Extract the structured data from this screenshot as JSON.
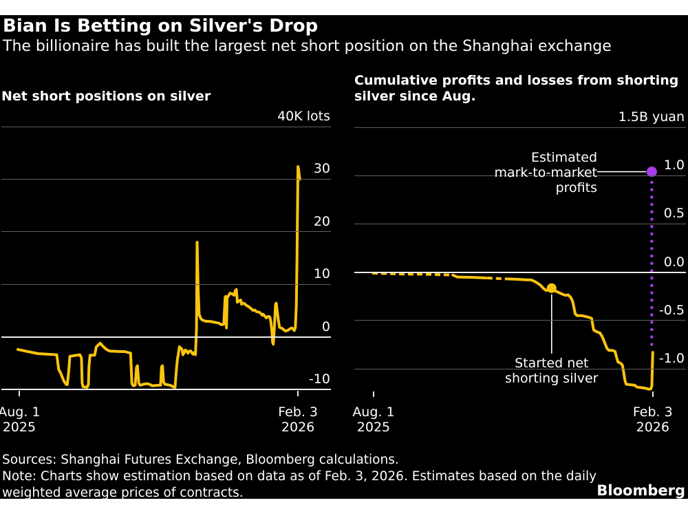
{
  "header": {
    "title": "Bian Is Betting on Silver's Drop",
    "subtitle": "The billionaire has built the largest net short position on the Shanghai exchange"
  },
  "footer": {
    "sources": "Sources: Shanghai Futures Exchange, Bloomberg calculations.",
    "note_line1": "Note: Charts show estimation based on data as of Feb. 3, 2026. Estimates based on the daily",
    "note_line2": "weighted average prices of contracts.",
    "brand": "Bloomberg"
  },
  "colors": {
    "background": "#000000",
    "page": "#ffffff",
    "line_yellow": "#fbc40f",
    "accent_purple": "#a93be8",
    "grid_gray": "#606060",
    "zero_line": "#ededed",
    "text": "#ffffff"
  },
  "chart_data": [
    {
      "type": "line",
      "id": "net-short-positions",
      "title_lines": [
        "Net short positions on silver"
      ],
      "unit_label": "40K lots",
      "ylabel": "K lots",
      "ylim": [
        -10,
        40
      ],
      "grid": true,
      "y_gridlines": [
        {
          "value": 40,
          "label": "40K lots",
          "emphasis": false
        },
        {
          "value": 30,
          "label": "30",
          "emphasis": false
        },
        {
          "value": 20,
          "label": "20",
          "emphasis": false
        },
        {
          "value": 10,
          "label": "10",
          "emphasis": false
        },
        {
          "value": 0,
          "label": "0",
          "emphasis": true
        },
        {
          "value": -10,
          "label": "-10",
          "emphasis": true
        }
      ],
      "x_ticks": [
        {
          "f": 0.054,
          "line1": "Aug. 1",
          "line2": "2025"
        },
        {
          "f": 0.9,
          "line1": "Feb. 3",
          "line2": "2026"
        }
      ],
      "series": [
        {
          "name": "net-short-lots",
          "dash": false,
          "points": [
            [
              0.05,
              -2.4
            ],
            [
              0.072,
              -2.7
            ],
            [
              0.111,
              -3.2
            ],
            [
              0.168,
              -3.4
            ],
            [
              0.174,
              -6.2
            ],
            [
              0.18,
              -6.9
            ],
            [
              0.189,
              -8.3
            ],
            [
              0.196,
              -9.0
            ],
            [
              0.2,
              -9.1
            ],
            [
              0.204,
              -6.8
            ],
            [
              0.208,
              -3.7
            ],
            [
              0.238,
              -3.4
            ],
            [
              0.243,
              -4.0
            ],
            [
              0.245,
              -8.8
            ],
            [
              0.248,
              -9.5
            ],
            [
              0.26,
              -9.6
            ],
            [
              0.264,
              -9.1
            ],
            [
              0.266,
              -5.5
            ],
            [
              0.269,
              -3.5
            ],
            [
              0.283,
              -3.5
            ],
            [
              0.288,
              -1.9
            ],
            [
              0.3,
              -1.2
            ],
            [
              0.305,
              -1.6
            ],
            [
              0.317,
              -2.3
            ],
            [
              0.328,
              -2.7
            ],
            [
              0.362,
              -2.8
            ],
            [
              0.374,
              -2.8
            ],
            [
              0.392,
              -3.1
            ],
            [
              0.396,
              -8.9
            ],
            [
              0.4,
              -9.3
            ],
            [
              0.406,
              -9.2
            ],
            [
              0.41,
              -5.8
            ],
            [
              0.413,
              -5.5
            ],
            [
              0.417,
              -8.8
            ],
            [
              0.421,
              -9.2
            ],
            [
              0.432,
              -9.0
            ],
            [
              0.443,
              -8.9
            ],
            [
              0.452,
              -9.1
            ],
            [
              0.457,
              -9.3
            ],
            [
              0.478,
              -9.2
            ],
            [
              0.483,
              -9.2
            ],
            [
              0.486,
              -5.7
            ],
            [
              0.489,
              -5.5
            ],
            [
              0.492,
              -8.6
            ],
            [
              0.496,
              -9.0
            ],
            [
              0.512,
              -9.2
            ],
            [
              0.521,
              -9.5
            ],
            [
              0.527,
              -9.6
            ],
            [
              0.53,
              -7.0
            ],
            [
              0.534,
              -4.3
            ],
            [
              0.537,
              -3.3
            ],
            [
              0.54,
              -1.9
            ],
            [
              0.544,
              -2.1
            ],
            [
              0.548,
              -2.4
            ],
            [
              0.551,
              -3.4
            ],
            [
              0.555,
              -3.0
            ],
            [
              0.558,
              -2.5
            ],
            [
              0.562,
              -2.7
            ],
            [
              0.566,
              -3.1
            ],
            [
              0.57,
              -2.7
            ],
            [
              0.575,
              -2.7
            ],
            [
              0.581,
              -3.3
            ],
            [
              0.585,
              -3.0
            ],
            [
              0.589,
              -3.4
            ],
            [
              0.592,
              1.5
            ],
            [
              0.594,
              18.0
            ],
            [
              0.597,
              9.0
            ],
            [
              0.6,
              4.3
            ],
            [
              0.605,
              3.5
            ],
            [
              0.61,
              3.2
            ],
            [
              0.618,
              3.0
            ],
            [
              0.637,
              2.9
            ],
            [
              0.66,
              2.6
            ],
            [
              0.668,
              2.3
            ],
            [
              0.675,
              2.4
            ],
            [
              0.679,
              7.5
            ],
            [
              0.681,
              7.7
            ],
            [
              0.683,
              1.7
            ],
            [
              0.685,
              7.4
            ],
            [
              0.69,
              7.9
            ],
            [
              0.694,
              8.3
            ],
            [
              0.7,
              8.2
            ],
            [
              0.706,
              7.9
            ],
            [
              0.71,
              8.8
            ],
            [
              0.713,
              9.0
            ],
            [
              0.716,
              6.6
            ],
            [
              0.721,
              6.8
            ],
            [
              0.726,
              7.0
            ],
            [
              0.729,
              6.2
            ],
            [
              0.734,
              6.4
            ],
            [
              0.738,
              6.3
            ],
            [
              0.743,
              6.0
            ],
            [
              0.749,
              5.8
            ],
            [
              0.757,
              5.4
            ],
            [
              0.764,
              5.0
            ],
            [
              0.769,
              5.1
            ],
            [
              0.774,
              4.8
            ],
            [
              0.781,
              4.7
            ],
            [
              0.785,
              4.6
            ],
            [
              0.789,
              4.3
            ],
            [
              0.792,
              4.1
            ],
            [
              0.794,
              4.3
            ],
            [
              0.8,
              3.9
            ],
            [
              0.804,
              3.6
            ],
            [
              0.808,
              3.8
            ],
            [
              0.811,
              3.9
            ],
            [
              0.815,
              3.7
            ],
            [
              0.818,
              2.8
            ],
            [
              0.821,
              0.9
            ],
            [
              0.823,
              -1.0
            ],
            [
              0.825,
              -1.4
            ],
            [
              0.828,
              1.3
            ],
            [
              0.83,
              3.9
            ],
            [
              0.832,
              6.2
            ],
            [
              0.834,
              6.4
            ],
            [
              0.837,
              4.9
            ],
            [
              0.841,
              3.0
            ],
            [
              0.844,
              1.8
            ],
            [
              0.852,
              1.6
            ],
            [
              0.862,
              1.1
            ],
            [
              0.867,
              1.2
            ],
            [
              0.871,
              1.3
            ],
            [
              0.875,
              1.5
            ],
            [
              0.881,
              1.7
            ],
            [
              0.885,
              1.5
            ],
            [
              0.889,
              1.2
            ],
            [
              0.892,
              1.8
            ],
            [
              0.895,
              6.0
            ],
            [
              0.897,
              15.0
            ],
            [
              0.899,
              26.0
            ],
            [
              0.9,
              32.4
            ],
            [
              0.902,
              31.8
            ],
            [
              0.904,
              30.6
            ],
            [
              0.906,
              30.0
            ]
          ]
        }
      ]
    },
    {
      "type": "line",
      "id": "cumulative-pnl",
      "title_lines": [
        "Cumulative profits and losses from shorting",
        "silver since Aug."
      ],
      "unit_label": "1.5B yuan",
      "ylabel": "B yuan",
      "ylim": [
        -1.235,
        1.5
      ],
      "grid": true,
      "y_gridlines": [
        {
          "value": 1.5,
          "label": "1.5B yuan",
          "emphasis": false
        },
        {
          "value": 1.0,
          "label": "1.0",
          "emphasis": false
        },
        {
          "value": 0.5,
          "label": "0.5",
          "emphasis": false
        },
        {
          "value": 0.0,
          "label": "0.0",
          "emphasis": true
        },
        {
          "value": -0.5,
          "label": "-0.5",
          "emphasis": false
        },
        {
          "value": -1.0,
          "label": "-1.0",
          "emphasis": false
        }
      ],
      "x_ticks": [
        {
          "f": 0.058,
          "line1": "Aug. 1",
          "line2": "2025"
        },
        {
          "f": 0.9,
          "line1": "Feb. 3",
          "line2": "2026"
        }
      ],
      "series": [
        {
          "name": "pnl-estimate-dashed-1",
          "dash": true,
          "points": [
            [
              0.054,
              -0.01
            ],
            [
              0.1,
              -0.015
            ],
            [
              0.15,
              -0.02
            ],
            [
              0.2,
              -0.02
            ],
            [
              0.25,
              -0.025
            ],
            [
              0.297,
              -0.03
            ]
          ]
        },
        {
          "name": "pnl-solid-1",
          "dash": false,
          "points": [
            [
              0.297,
              -0.03
            ],
            [
              0.31,
              -0.05
            ],
            [
              0.36,
              -0.055
            ],
            [
              0.396,
              -0.06
            ]
          ]
        },
        {
          "name": "pnl-estimate-dashed-2",
          "dash": true,
          "points": [
            [
              0.4,
              -0.06
            ],
            [
              0.43,
              -0.065
            ],
            [
              0.461,
              -0.07
            ]
          ]
        },
        {
          "name": "pnl-main",
          "dash": false,
          "points": [
            [
              0.463,
              -0.07
            ],
            [
              0.5,
              -0.075
            ],
            [
              0.52,
              -0.08
            ],
            [
              0.533,
              -0.08
            ],
            [
              0.546,
              -0.1
            ],
            [
              0.56,
              -0.13
            ],
            [
              0.571,
              -0.17
            ],
            [
              0.579,
              -0.19
            ],
            [
              0.587,
              -0.18
            ],
            [
              0.595,
              -0.165
            ],
            [
              0.604,
              -0.19
            ],
            [
              0.616,
              -0.21
            ],
            [
              0.629,
              -0.23
            ],
            [
              0.637,
              -0.24
            ],
            [
              0.645,
              -0.235
            ],
            [
              0.652,
              -0.26
            ],
            [
              0.658,
              -0.3
            ],
            [
              0.662,
              -0.36
            ],
            [
              0.666,
              -0.43
            ],
            [
              0.672,
              -0.45
            ],
            [
              0.687,
              -0.45
            ],
            [
              0.699,
              -0.46
            ],
            [
              0.71,
              -0.47
            ],
            [
              0.716,
              -0.48
            ],
            [
              0.719,
              -0.55
            ],
            [
              0.722,
              -0.6
            ],
            [
              0.73,
              -0.615
            ],
            [
              0.741,
              -0.63
            ],
            [
              0.748,
              -0.67
            ],
            [
              0.755,
              -0.73
            ],
            [
              0.762,
              -0.79
            ],
            [
              0.768,
              -0.81
            ],
            [
              0.778,
              -0.81
            ],
            [
              0.786,
              -0.82
            ],
            [
              0.79,
              -0.87
            ],
            [
              0.795,
              -0.93
            ],
            [
              0.802,
              -0.94
            ],
            [
              0.808,
              -0.96
            ],
            [
              0.812,
              -1.03
            ],
            [
              0.816,
              -1.12
            ],
            [
              0.82,
              -1.16
            ],
            [
              0.832,
              -1.165
            ],
            [
              0.845,
              -1.17
            ],
            [
              0.853,
              -1.19
            ],
            [
              0.865,
              -1.195
            ],
            [
              0.876,
              -1.2
            ],
            [
              0.886,
              -1.21
            ],
            [
              0.894,
              -1.21
            ],
            [
              0.897,
              -1.18
            ],
            [
              0.899,
              -0.95
            ],
            [
              0.9,
              -0.83
            ]
          ]
        }
      ],
      "annotations": {
        "estimated_label_lines": [
          "Estimated",
          "mark-to-market",
          "profits"
        ],
        "started_label_lines": [
          "Started net",
          "shorting silver"
        ],
        "profit_dot": {
          "f": 0.897,
          "value": 1.04
        },
        "dotted_line": {
          "f": 0.897,
          "from_value": 0.93,
          "to_value": -0.81
        },
        "started_dot": {
          "f": 0.595,
          "value": -0.165
        }
      }
    }
  ]
}
